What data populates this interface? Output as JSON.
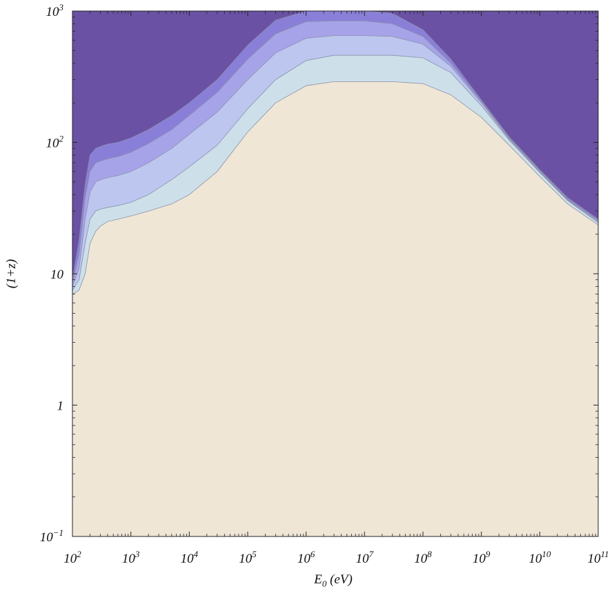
{
  "chart_data": {
    "type": "area",
    "xlabel": "E0 (eV)",
    "ylabel": "(1+z)",
    "xscale": "log",
    "yscale": "log",
    "xlim": [
      100,
      100000000000
    ],
    "ylim": [
      0.1,
      1000
    ],
    "grid": false,
    "x_ticks": [
      {
        "value": 100,
        "label": "10",
        "exp": "2"
      },
      {
        "value": 1000,
        "label": "10",
        "exp": "3"
      },
      {
        "value": 10000,
        "label": "10",
        "exp": "4"
      },
      {
        "value": 100000,
        "label": "10",
        "exp": "5"
      },
      {
        "value": 1000000,
        "label": "10",
        "exp": "6"
      },
      {
        "value": 10000000,
        "label": "10",
        "exp": "7"
      },
      {
        "value": 100000000,
        "label": "10",
        "exp": "8"
      },
      {
        "value": 1000000000,
        "label": "10",
        "exp": "9"
      },
      {
        "value": 10000000000,
        "label": "10",
        "exp": "10"
      },
      {
        "value": 100000000000,
        "label": "10",
        "exp": "11"
      }
    ],
    "y_ticks": [
      {
        "value": 0.1,
        "label": "10",
        "exp": "−1"
      },
      {
        "value": 1,
        "label": "1",
        "exp": ""
      },
      {
        "value": 10,
        "label": "10",
        "exp": ""
      },
      {
        "value": 100,
        "label": "10",
        "exp": "2"
      },
      {
        "value": 1000,
        "label": "10",
        "exp": "3"
      }
    ],
    "background_color": "#4a1486",
    "contours": [
      {
        "level": 4,
        "color": "#6a51a3",
        "x": [
          100,
          130,
          165,
          200,
          250,
          300,
          400,
          600,
          1000,
          2000,
          5000,
          10000,
          30000,
          100000,
          300000,
          1000000,
          3000000,
          10000000,
          30000000,
          100000000,
          300000000,
          1000000000,
          3000000000,
          10000000000,
          30000000000,
          100000000000
        ],
        "y": [
          1000,
          1000,
          1000,
          1000,
          1000,
          1000,
          1000,
          1000,
          1000,
          1000,
          1000,
          1000,
          1000,
          1000,
          1000,
          1000,
          1000,
          1000,
          1000,
          1000,
          1000,
          1000,
          1000,
          1000,
          1000,
          1000
        ]
      },
      {
        "level": 3,
        "color": "#8a7fd8",
        "x": [
          100,
          130,
          165,
          200,
          250,
          300,
          400,
          600,
          1000,
          2000,
          5000,
          10000,
          30000,
          100000,
          300000,
          1000000,
          3000000,
          10000000,
          30000000,
          100000000,
          300000000,
          1000000000,
          3000000000,
          10000000000,
          30000000000,
          100000000000
        ],
        "y": [
          9,
          18,
          48,
          80,
          90,
          93,
          97,
          100,
          108,
          125,
          160,
          200,
          300,
          550,
          850,
          1000,
          1000,
          1000,
          960,
          720,
          430,
          210,
          110,
          62,
          38,
          26
        ]
      },
      {
        "level": 2,
        "color": "#a7a3e9",
        "x": [
          100,
          130,
          165,
          200,
          250,
          300,
          400,
          600,
          1000,
          2000,
          5000,
          10000,
          30000,
          100000,
          300000,
          1000000,
          3000000,
          10000000,
          30000000,
          100000000,
          300000000,
          1000000000,
          3000000000,
          10000000000,
          30000000000,
          100000000000
        ],
        "y": [
          8.5,
          14,
          38,
          60,
          70,
          72,
          75,
          78,
          84,
          98,
          125,
          160,
          240,
          430,
          670,
          830,
          840,
          840,
          800,
          640,
          400,
          205,
          108,
          61,
          37,
          25.5
        ]
      },
      {
        "level": 1,
        "color": "#bcc6ef",
        "x": [
          100,
          130,
          165,
          200,
          250,
          300,
          400,
          600,
          1000,
          2000,
          5000,
          10000,
          30000,
          100000,
          300000,
          1000000,
          3000000,
          10000000,
          30000000,
          100000000,
          300000000,
          1000000000,
          3000000000,
          10000000000,
          30000000000,
          100000000000
        ],
        "y": [
          8,
          11,
          26,
          42,
          50,
          52,
          54,
          56,
          60,
          70,
          90,
          115,
          170,
          300,
          480,
          620,
          650,
          650,
          640,
          560,
          380,
          200,
          106,
          60,
          36.5,
          25
        ]
      },
      {
        "level": 0,
        "color": "#cde0ea",
        "x": [
          100,
          130,
          165,
          200,
          250,
          300,
          400,
          600,
          1000,
          2000,
          5000,
          10000,
          30000,
          100000,
          300000,
          1000000,
          3000000,
          10000000,
          30000000,
          100000000,
          300000000,
          1000000000,
          3000000000,
          10000000000,
          30000000000,
          100000000000
        ],
        "y": [
          7.5,
          9,
          17,
          26,
          30,
          31,
          32,
          33,
          35,
          40,
          52,
          65,
          95,
          180,
          300,
          420,
          460,
          460,
          460,
          440,
          340,
          190,
          104,
          59,
          36,
          24.5
        ]
      },
      {
        "level": -1,
        "color": "#efe6d6",
        "x": [
          100,
          130,
          165,
          200,
          250,
          300,
          400,
          600,
          1000,
          2000,
          5000,
          10000,
          30000,
          100000,
          300000,
          1000000,
          3000000,
          10000000,
          30000000,
          100000000,
          300000000,
          1000000000,
          3000000000,
          10000000000,
          30000000000,
          100000000000
        ],
        "y": [
          7,
          7.5,
          10,
          17,
          21,
          23,
          25,
          26,
          27.5,
          30,
          34,
          40,
          60,
          120,
          200,
          270,
          290,
          290,
          290,
          280,
          230,
          155,
          95,
          55,
          34,
          23.5
        ]
      }
    ]
  }
}
